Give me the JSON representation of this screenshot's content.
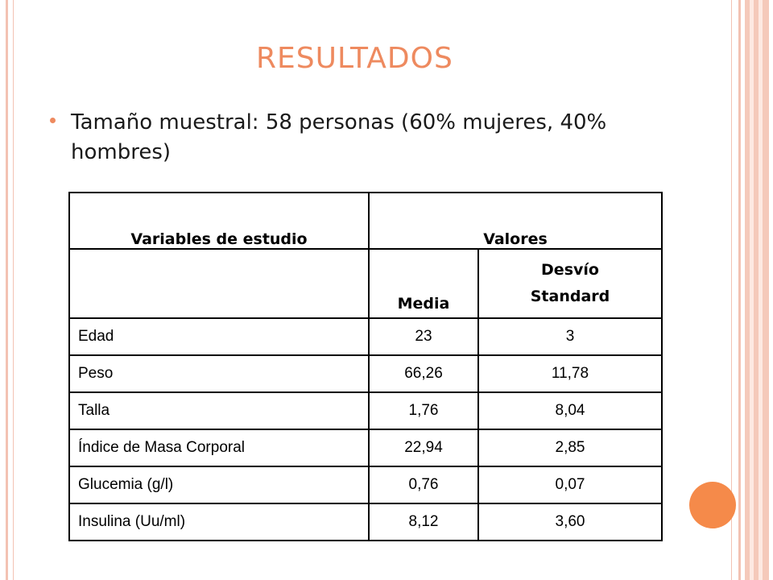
{
  "slide": {
    "title": "RESULTADOS",
    "bullet": "Tamaño muestral: 58 personas (60% mujeres, 40% hombres)"
  },
  "table": {
    "header": {
      "variables": "Variables de estudio",
      "valores": "Valores"
    },
    "subheader": {
      "blank": "",
      "media": "Media",
      "desvio_line1": "Desvío",
      "desvio_line2": "Standard"
    },
    "rows": [
      {
        "label": "Edad",
        "media": "23",
        "desvio": "3"
      },
      {
        "label": "Peso",
        "media": "66,26",
        "desvio": "11,78"
      },
      {
        "label": "Talla",
        "media": "1,76",
        "desvio": "8,04"
      },
      {
        "label": "Índice de Masa Corporal",
        "media": "22,94",
        "desvio": "2,85"
      },
      {
        "label": "Glucemia (g/l)",
        "media": "0,76",
        "desvio": "0,07"
      },
      {
        "label": "Insulina (Uu/ml)",
        "media": "8,12",
        "desvio": "3,60"
      }
    ]
  },
  "colors": {
    "accent": "#ee8a5f",
    "frame": "#f3c2b3",
    "circle": "#f58a4a"
  }
}
